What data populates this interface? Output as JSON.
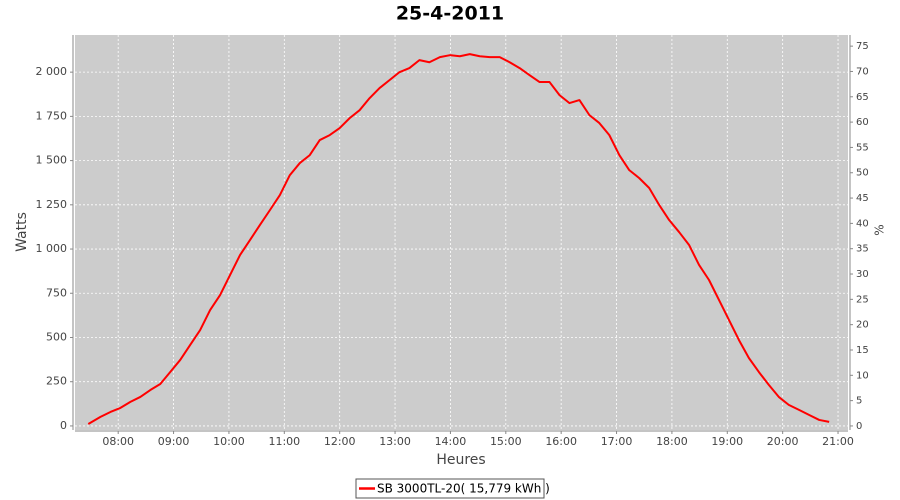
{
  "chart_data": {
    "type": "line",
    "title": "25-4-2011",
    "xlabel": "Heures",
    "ylabel": "Watts",
    "y2label": "%",
    "x": [
      7.46,
      7.68,
      7.86,
      8.04,
      8.22,
      8.4,
      8.58,
      8.76,
      8.94,
      9.12,
      9.3,
      9.48,
      9.66,
      9.84,
      10.02,
      10.2,
      10.38,
      10.56,
      10.74,
      10.92,
      11.1,
      11.28,
      11.46,
      11.64,
      11.82,
      12.0,
      12.18,
      12.36,
      12.54,
      12.72,
      12.9,
      13.08,
      13.26,
      13.44,
      13.62,
      13.81,
      13.99,
      14.17,
      14.35,
      14.53,
      14.71,
      14.89,
      15.07,
      15.25,
      15.43,
      15.61,
      15.79,
      15.97,
      16.15,
      16.33,
      16.51,
      16.69,
      16.87,
      17.05,
      17.23,
      17.41,
      17.59,
      17.77,
      17.95,
      18.13,
      18.31,
      18.49,
      18.67,
      18.85,
      19.03,
      19.21,
      19.39,
      19.57,
      19.75,
      19.93,
      20.11,
      20.3,
      20.48,
      20.66,
      20.84
    ],
    "series": [
      {
        "name": "SB 3000TL-20( 15,779 kWh  )",
        "color": "#ff0000",
        "values": [
          11,
          51,
          79,
          102,
          136,
          164,
          203,
          237,
          305,
          373,
          458,
          542,
          655,
          740,
          853,
          966,
          1051,
          1136,
          1220,
          1305,
          1418,
          1486,
          1531,
          1616,
          1644,
          1684,
          1740,
          1785,
          1853,
          1910,
          1955,
          2000,
          2023,
          2068,
          2056,
          2085,
          2096,
          2090,
          2102,
          2090,
          2085,
          2085,
          2056,
          2023,
          1983,
          1944,
          1944,
          1870,
          1825,
          1842,
          1757,
          1712,
          1644,
          1531,
          1446,
          1401,
          1345,
          1249,
          1164,
          1096,
          1023,
          910,
          825,
          712,
          599,
          486,
          384,
          305,
          232,
          164,
          119,
          90,
          62,
          34,
          23
        ]
      }
    ],
    "xlim": [
      7.22,
      21.18
    ],
    "xticks": [
      {
        "value": 8,
        "label": "08:00"
      },
      {
        "value": 9,
        "label": "09:00"
      },
      {
        "value": 10,
        "label": "10:00"
      },
      {
        "value": 11,
        "label": "11:00"
      },
      {
        "value": 12,
        "label": "12:00"
      },
      {
        "value": 13,
        "label": "13:00"
      },
      {
        "value": 14,
        "label": "14:00"
      },
      {
        "value": 15,
        "label": "15:00"
      },
      {
        "value": 16,
        "label": "16:00"
      },
      {
        "value": 17,
        "label": "17:00"
      },
      {
        "value": 18,
        "label": "18:00"
      },
      {
        "value": 19,
        "label": "19:00"
      },
      {
        "value": 20,
        "label": "20:00"
      },
      {
        "value": 21,
        "label": "21:00"
      }
    ],
    "ylim": [
      -23,
      2210
    ],
    "yticks": [
      0,
      250,
      500,
      750,
      {
        "value": 1000,
        "label": "1 000"
      },
      {
        "value": 1250,
        "label": "1 250"
      },
      {
        "value": 1500,
        "label": "1 500"
      },
      {
        "value": 1750,
        "label": "1 750"
      },
      {
        "value": 2000,
        "label": "2 000"
      }
    ],
    "y2lim": [
      -0.8,
      77.2
    ],
    "y2ticks": [
      0,
      5,
      10,
      15,
      20,
      25,
      30,
      35,
      40,
      45,
      50,
      55,
      60,
      65,
      70,
      75
    ],
    "grid": true,
    "plot_background": "#cccccc",
    "legend_position": "bottom"
  }
}
